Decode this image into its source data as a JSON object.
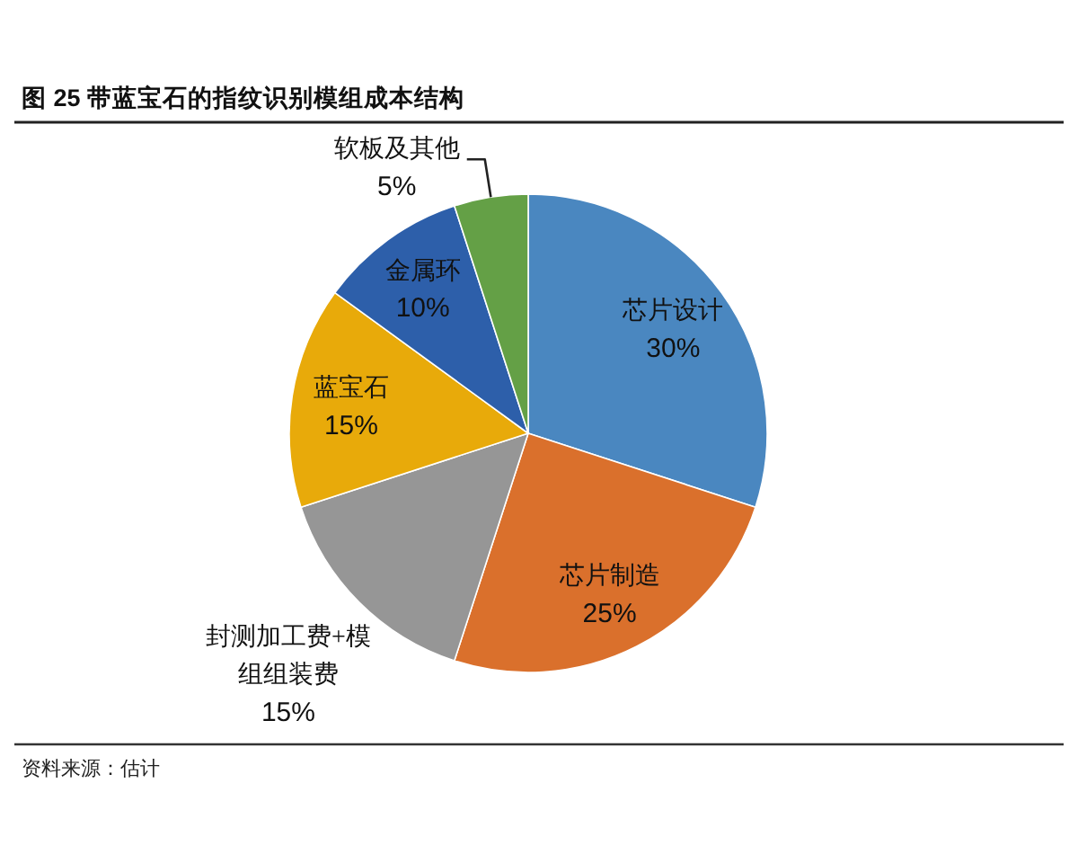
{
  "chart_data": {
    "type": "pie",
    "title": "图 25 带蓝宝石的指纹识别模组成本结构",
    "categories": [
      "芯片设计",
      "芯片制造",
      "封测加工费+模组组装费",
      "蓝宝石",
      "金属环",
      "软板及其他"
    ],
    "values": [
      30,
      25,
      15,
      15,
      10,
      5
    ],
    "colors": [
      "#4a87c0",
      "#da702c",
      "#969696",
      "#e8aa0a",
      "#2d5faa",
      "#64a046"
    ],
    "value_labels": [
      "30%",
      "25%",
      "15%",
      "15%",
      "10%",
      "5%"
    ],
    "annotations": [
      "资料来源：估计"
    ]
  }
}
